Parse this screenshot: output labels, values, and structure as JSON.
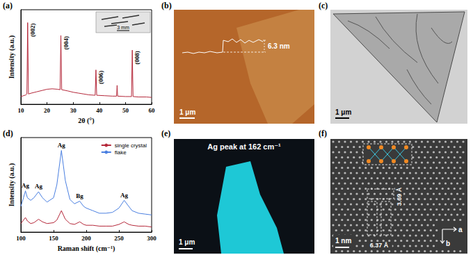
{
  "chart_data": [
    {
      "panel": "(a)",
      "type": "line",
      "x_label": "2θ (°)",
      "y_label": "Intensity (a.u.)",
      "xlim": [
        10,
        60
      ],
      "xticks": [
        10,
        20,
        30,
        40,
        50,
        60
      ],
      "ylim": [
        0,
        110
      ],
      "yticks": [],
      "tick_labels": "x",
      "grid": false,
      "x": [
        10,
        11,
        12,
        12.3,
        12.6,
        12.9,
        14,
        16,
        18,
        20,
        22,
        24,
        25,
        25.3,
        25.6,
        28,
        30,
        32,
        34,
        36,
        38.4,
        38.7,
        39,
        42,
        45,
        46.6,
        46.8,
        47,
        50,
        52.3,
        52.6,
        52.9,
        55,
        58,
        60
      ],
      "series": [
        {
          "color": "#b5283a",
          "values": [
            9,
            10,
            11,
            12,
            95,
            12,
            13,
            14.5,
            16,
            17.5,
            18,
            17.5,
            17,
            80,
            17,
            15.5,
            14,
            13,
            12,
            11,
            10.5,
            40,
            10.5,
            10,
            9.5,
            9.5,
            22,
            9.5,
            9,
            9,
            63,
            9,
            8.5,
            8.5,
            8
          ]
        }
      ],
      "annotations": [
        {
          "text": "(002)",
          "x": 12.6,
          "y": 95
        },
        {
          "text": "(004)",
          "x": 25.3,
          "y": 80
        },
        {
          "text": "(006)",
          "x": 38.7,
          "y": 40
        },
        {
          "text": "(008)",
          "x": 52.6,
          "y": 63
        }
      ],
      "inset": {
        "scale_bar": "3 mm"
      }
    },
    {
      "panel": "(d)",
      "type": "line",
      "x_label": "Raman shift (cm⁻¹)",
      "y_label": "Intensity (a.u.)",
      "xlim": [
        100,
        300
      ],
      "xticks": [
        100,
        150,
        200,
        250,
        300
      ],
      "ylim": [
        0,
        110
      ],
      "yticks": [],
      "tick_labels": "x",
      "grid": false,
      "legend": "upper right",
      "x": [
        100,
        104,
        107,
        110,
        115,
        120,
        127,
        133,
        140,
        150,
        155,
        162,
        168,
        175,
        182,
        190,
        196,
        200,
        210,
        220,
        230,
        240,
        250,
        258,
        265,
        270,
        280,
        290,
        300
      ],
      "series": [
        {
          "name": "single crystal",
          "color": "#b5283a",
          "values": [
            10,
            14,
            17,
            13,
            10,
            11,
            15,
            12,
            10,
            11,
            14,
            25,
            15,
            10,
            9,
            12,
            9,
            8,
            8,
            7,
            7,
            7,
            9,
            12,
            9,
            8,
            7,
            7,
            6
          ]
        },
        {
          "name": "flake",
          "color": "#4a7fe0",
          "values": [
            30,
            40,
            48,
            40,
            37,
            40,
            47,
            40,
            35,
            40,
            55,
            95,
            60,
            38,
            33,
            36,
            30,
            28,
            25,
            22,
            22,
            23,
            28,
            37,
            30,
            25,
            22,
            21,
            20
          ]
        }
      ],
      "annotations": [
        {
          "text": "Ag",
          "x": 107,
          "y": 48
        },
        {
          "text": "Ag",
          "x": 127,
          "y": 47
        },
        {
          "text": "Ag",
          "x": 162,
          "y": 95
        },
        {
          "text": "Bg",
          "x": 190,
          "y": 36
        },
        {
          "text": "Ag",
          "x": 258,
          "y": 37
        }
      ]
    }
  ],
  "images": [
    {
      "panel": "(b)",
      "scale_bar": "1 μm",
      "annotations": [
        "6.3 nm"
      ]
    },
    {
      "panel": "(c)",
      "scale_bar": "1 μm"
    },
    {
      "panel": "(e)",
      "title": "Ag peak at 162 cm⁻¹",
      "scale_bar": "1 μm"
    },
    {
      "panel": "(f)",
      "scale_bar": "1 nm",
      "annotations": [
        "6.37 Å",
        "3.69 Å"
      ],
      "axes": [
        "a",
        "b"
      ]
    }
  ]
}
